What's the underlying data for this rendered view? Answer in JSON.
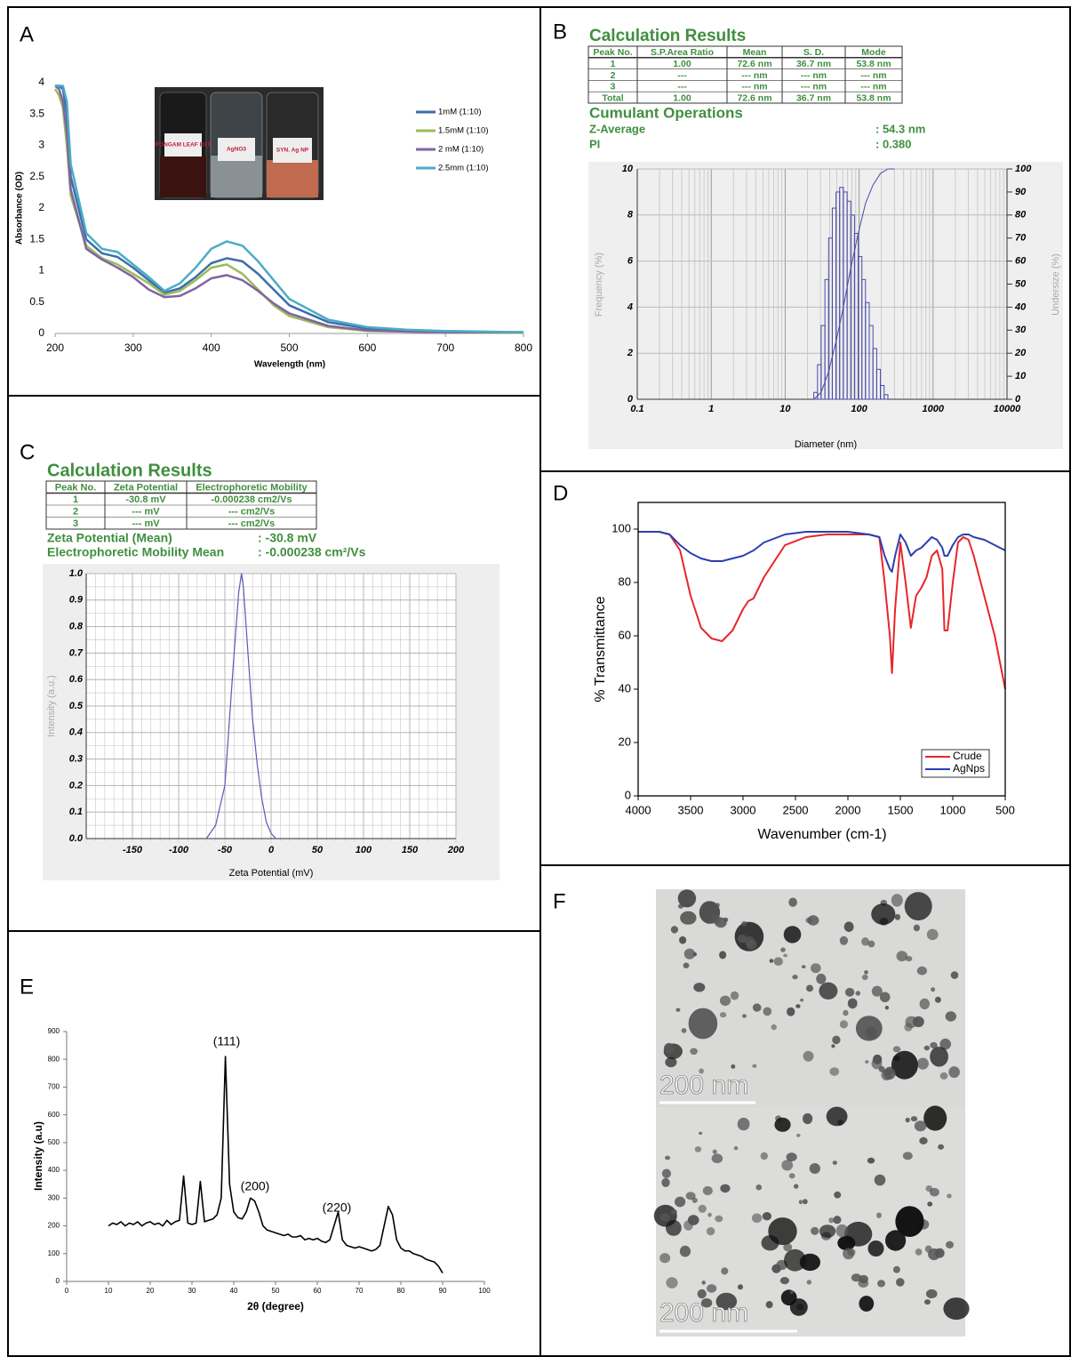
{
  "chart_data": [
    {
      "type": "line",
      "panel": "A",
      "y_label": "Absorbance (OD)",
      "x_label": "Wavelength (nm)",
      "inset_labels": [
        "PONGAM LEAF EXT",
        "AgNO3",
        "SYN. Ag NP"
      ],
      "xlim": [
        200,
        800
      ],
      "xticks": [
        200,
        300,
        400,
        500,
        600,
        700,
        800
      ],
      "ylim": [
        0,
        4
      ],
      "yticks": [
        0,
        0.5,
        1,
        1.5,
        2,
        2.5,
        3,
        3.5,
        4
      ],
      "x": [
        200,
        205,
        210,
        215,
        220,
        240,
        260,
        280,
        300,
        320,
        340,
        360,
        380,
        400,
        420,
        440,
        460,
        480,
        500,
        550,
        600,
        650,
        700,
        750,
        800
      ],
      "series": [
        {
          "name": "1mM (1:10)",
          "color": "#3b6ea8",
          "values": [
            3.95,
            3.95,
            3.9,
            3.5,
            2.5,
            1.5,
            1.28,
            1.22,
            1.05,
            0.85,
            0.65,
            0.72,
            0.9,
            1.12,
            1.2,
            1.15,
            0.95,
            0.7,
            0.45,
            0.18,
            0.08,
            0.05,
            0.03,
            0.02,
            0.02
          ]
        },
        {
          "name": "1.5mM (1:10)",
          "color": "#9bbb59",
          "values": [
            3.9,
            3.8,
            3.6,
            3.0,
            2.2,
            1.4,
            1.2,
            1.1,
            0.95,
            0.8,
            0.62,
            0.68,
            0.85,
            1.05,
            1.1,
            0.95,
            0.7,
            0.45,
            0.28,
            0.1,
            0.04,
            0.03,
            0.02,
            0.01,
            0.01
          ]
        },
        {
          "name": "2 mM (1:10)",
          "color": "#8064a2",
          "values": [
            3.95,
            3.9,
            3.7,
            3.2,
            2.3,
            1.35,
            1.18,
            1.05,
            0.9,
            0.7,
            0.58,
            0.6,
            0.72,
            0.88,
            0.93,
            0.85,
            0.68,
            0.48,
            0.32,
            0.12,
            0.05,
            0.03,
            0.02,
            0.02,
            0.02
          ]
        },
        {
          "name": "2.5mm (1:10)",
          "color": "#4bacc6",
          "values": [
            3.95,
            3.95,
            3.95,
            3.7,
            2.7,
            1.6,
            1.35,
            1.3,
            1.1,
            0.9,
            0.68,
            0.8,
            1.05,
            1.35,
            1.47,
            1.4,
            1.15,
            0.85,
            0.55,
            0.22,
            0.1,
            0.06,
            0.04,
            0.03,
            0.02
          ]
        }
      ]
    },
    {
      "type": "histogram",
      "panel": "B",
      "title": "Calculation Results",
      "table": {
        "header": [
          "Peak No.",
          "S.P.Area Ratio",
          "Mean",
          "S. D.",
          "Mode"
        ],
        "rows": [
          [
            "1",
            "1.00",
            "72.6 nm",
            "36.7 nm",
            "53.8 nm"
          ],
          [
            "2",
            "---",
            "--- nm",
            "--- nm",
            "--- nm"
          ],
          [
            "3",
            "---",
            "--- nm",
            "--- nm",
            "--- nm"
          ],
          [
            "Total",
            "1.00",
            "72.6 nm",
            "36.7 nm",
            "53.8 nm"
          ]
        ]
      },
      "subtitle": "Cumulant Operations",
      "stats": [
        {
          "label": "Z-Average",
          "value": ": 54.3 nm"
        },
        {
          "label": "PI",
          "value": ": 0.380"
        }
      ],
      "y_label": "Frequency (%)",
      "y2_label": "Undersize (%)",
      "x_label": "Diameter (nm)",
      "xlog": true,
      "xlim": [
        0.1,
        10000
      ],
      "xticks": [
        0.1,
        1,
        10,
        100,
        1000,
        10000
      ],
      "ylim": [
        0,
        10
      ],
      "yticks": [
        0,
        2,
        4,
        6,
        8,
        10
      ],
      "y2lim": [
        0,
        100
      ],
      "y2ticks": [
        0,
        10,
        20,
        30,
        40,
        50,
        60,
        70,
        80,
        90,
        100
      ],
      "color": "#4a4aa8",
      "bins": [
        24.4,
        27.4,
        30.7,
        34.5,
        38.7,
        43.4,
        48.7,
        54.6,
        61.3,
        68.8,
        77.2,
        86.6,
        97.2,
        109,
        122,
        137,
        154,
        173,
        194,
        218,
        245
      ],
      "values": [
        0.3,
        1.5,
        3.2,
        5.2,
        7.0,
        8.3,
        9.0,
        9.2,
        9.0,
        8.6,
        8.0,
        7.2,
        6.2,
        5.2,
        4.2,
        3.2,
        2.2,
        1.3,
        0.6,
        0.2
      ],
      "cumulative": {
        "axis": "y2",
        "x": [
          24.4,
          30.7,
          38.7,
          48.7,
          61.3,
          77.2,
          97.2,
          122,
          154,
          194,
          245,
          300
        ],
        "values": [
          0,
          3,
          12,
          25,
          40,
          57,
          72,
          85,
          93,
          98,
          100,
          100
        ]
      }
    },
    {
      "type": "line",
      "panel": "C",
      "title": "Calculation Results",
      "table": {
        "header": [
          "Peak No.",
          "Zeta Potential",
          "Electrophoretic Mobility"
        ],
        "rows": [
          [
            "1",
            "-30.8 mV",
            "-0.000238 cm2/Vs"
          ],
          [
            "2",
            "--- mV",
            "--- cm2/Vs"
          ],
          [
            "3",
            "--- mV",
            "--- cm2/Vs"
          ]
        ]
      },
      "stats": [
        {
          "label": "Zeta Potential (Mean)",
          "value": ": -30.8 mV"
        },
        {
          "label": "Electrophoretic Mobility Mean",
          "value": ": -0.000238 cm²/Vs"
        }
      ],
      "y_label": "Intensity (a.u.)",
      "x_label": "Zeta Potential (mV)",
      "xlim": [
        -200,
        200
      ],
      "xticks": [
        -150,
        -100,
        -50,
        0,
        50,
        100,
        150,
        200
      ],
      "ylim": [
        0,
        1
      ],
      "yticks": [
        {
          "value": 0,
          "label": "0.0"
        },
        0.1,
        0.2,
        0.3,
        0.4,
        0.5,
        0.6,
        0.7,
        0.8,
        0.9,
        {
          "value": 1,
          "label": "1.0"
        }
      ],
      "color": "#5a5ab8",
      "x": [
        -70,
        -60,
        -50,
        -45,
        -40,
        -35,
        -32,
        -30,
        -28,
        -25,
        -20,
        -15,
        -10,
        -5,
        0,
        5
      ],
      "values": [
        0,
        0.05,
        0.2,
        0.45,
        0.7,
        0.93,
        1.0,
        0.95,
        0.85,
        0.7,
        0.45,
        0.28,
        0.15,
        0.06,
        0.02,
        0
      ]
    },
    {
      "type": "line",
      "panel": "D",
      "y_label": "% Transmittance",
      "x_label": "Wavenumber (cm-1)",
      "xlim": [
        4000,
        500
      ],
      "xticks": [
        4000,
        3500,
        3000,
        2500,
        2000,
        1500,
        1000,
        500
      ],
      "ylim": [
        0,
        110
      ],
      "yticks": [
        0,
        20,
        40,
        60,
        80,
        100
      ],
      "legend": "lower right",
      "x": [
        4000,
        3800,
        3700,
        3600,
        3500,
        3400,
        3300,
        3200,
        3100,
        3000,
        2950,
        2900,
        2800,
        2600,
        2400,
        2200,
        2000,
        1800,
        1700,
        1650,
        1600,
        1580,
        1550,
        1500,
        1450,
        1400,
        1350,
        1300,
        1250,
        1200,
        1150,
        1100,
        1080,
        1050,
        1000,
        950,
        900,
        850,
        800,
        700,
        600,
        500
      ],
      "series": [
        {
          "name": "Crude",
          "color": "#e8262a",
          "values": [
            99,
            99,
            98,
            92,
            75,
            63,
            59,
            58,
            62,
            70,
            73,
            74,
            82,
            94,
            97,
            98,
            98,
            98,
            97,
            80,
            60,
            46,
            70,
            95,
            80,
            63,
            75,
            78,
            82,
            90,
            92,
            85,
            62,
            62,
            80,
            95,
            97,
            96,
            90,
            75,
            60,
            40
          ]
        },
        {
          "name": "AgNps",
          "color": "#2b3fb0",
          "values": [
            99,
            99,
            98,
            94,
            91,
            89,
            88,
            88,
            89,
            90,
            91,
            92,
            95,
            98,
            99,
            99,
            99,
            98,
            97,
            90,
            85,
            84,
            90,
            98,
            95,
            90,
            92,
            93,
            95,
            97,
            96,
            93,
            90,
            90,
            94,
            97,
            98,
            98,
            97,
            96,
            94,
            92
          ]
        }
      ]
    },
    {
      "type": "line",
      "panel": "E",
      "y_label": "Intensity (a.u)",
      "x_label": "2θ (degree)",
      "annotations": [
        "(111)",
        "(200)",
        "(220)"
      ],
      "xlim": [
        0,
        100
      ],
      "xticks": [
        0,
        10,
        20,
        30,
        40,
        50,
        60,
        70,
        80,
        90,
        100
      ],
      "ylim": [
        0,
        900
      ],
      "yticks": [
        0,
        100,
        200,
        300,
        400,
        500,
        600,
        700,
        800,
        900
      ],
      "color": "#000000",
      "x": [
        10,
        11,
        12,
        13,
        14,
        15,
        16,
        17,
        18,
        19,
        20,
        21,
        22,
        23,
        24,
        25,
        26,
        27,
        28,
        29,
        30,
        31,
        32,
        33,
        34,
        35,
        36,
        37,
        38,
        39,
        40,
        41,
        42,
        43,
        44,
        45,
        46,
        47,
        48,
        49,
        50,
        51,
        52,
        53,
        54,
        55,
        56,
        57,
        58,
        59,
        60,
        61,
        62,
        63,
        64,
        65,
        66,
        67,
        68,
        69,
        70,
        71,
        72,
        73,
        74,
        75,
        76,
        77,
        78,
        79,
        80,
        81,
        82,
        83,
        84,
        85,
        86,
        87,
        88,
        89,
        90
      ],
      "values": [
        200,
        210,
        205,
        215,
        200,
        210,
        205,
        215,
        200,
        210,
        215,
        205,
        210,
        200,
        220,
        205,
        215,
        220,
        380,
        210,
        205,
        210,
        360,
        215,
        220,
        225,
        240,
        300,
        810,
        350,
        250,
        230,
        225,
        250,
        300,
        290,
        250,
        200,
        185,
        180,
        175,
        170,
        165,
        170,
        160,
        160,
        165,
        150,
        155,
        150,
        155,
        145,
        140,
        150,
        200,
        250,
        150,
        130,
        125,
        120,
        125,
        120,
        115,
        110,
        115,
        130,
        200,
        270,
        240,
        150,
        120,
        110,
        110,
        100,
        95,
        90,
        80,
        75,
        70,
        55,
        30
      ]
    }
  ],
  "figure_f": {
    "panel": "F",
    "scale_bars": [
      "200 nm",
      "200 nm"
    ]
  }
}
